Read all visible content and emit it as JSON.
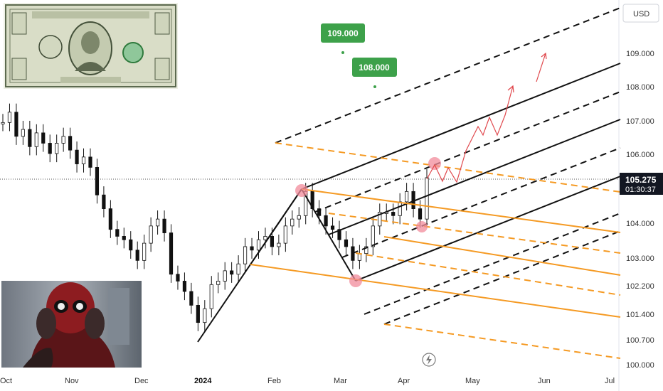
{
  "currency_label": "USD",
  "chart_data": {
    "type": "candlestick",
    "symbol_currency": "USD",
    "x_ticks": [
      "Oct",
      "Nov",
      "Dec",
      "2024",
      "Feb",
      "Mar",
      "Apr",
      "May",
      "Jun",
      "Jul"
    ],
    "y_ticks": [
      "109.000",
      "108.000",
      "107.000",
      "106.000",
      "104.000",
      "103.000",
      "102.200",
      "101.400",
      "100.700",
      "100.000"
    ],
    "last_price": "105.275",
    "countdown": "01:30:37",
    "targets": [
      {
        "label": "109.000",
        "value": 109.0
      },
      {
        "label": "108.000",
        "value": 108.0
      }
    ],
    "candles_approx": [
      {
        "x": 0.0,
        "close": 106.9
      },
      {
        "x": 0.01,
        "close": 107.2
      },
      {
        "x": 0.02,
        "close": 106.5
      },
      {
        "x": 0.03,
        "close": 106.7
      },
      {
        "x": 0.04,
        "close": 106.2
      },
      {
        "x": 0.05,
        "close": 106.6
      },
      {
        "x": 0.06,
        "close": 106.3
      },
      {
        "x": 0.07,
        "close": 106.0
      },
      {
        "x": 0.08,
        "close": 106.3
      },
      {
        "x": 0.09,
        "close": 106.5
      },
      {
        "x": 0.1,
        "close": 106.1
      },
      {
        "x": 0.11,
        "close": 105.7
      },
      {
        "x": 0.12,
        "close": 105.9
      },
      {
        "x": 0.13,
        "close": 105.6
      },
      {
        "x": 0.14,
        "close": 104.8
      },
      {
        "x": 0.15,
        "close": 104.4
      },
      {
        "x": 0.16,
        "close": 103.8
      },
      {
        "x": 0.17,
        "close": 103.6
      },
      {
        "x": 0.18,
        "close": 103.5
      },
      {
        "x": 0.19,
        "close": 103.2
      },
      {
        "x": 0.2,
        "close": 102.9
      },
      {
        "x": 0.21,
        "close": 103.4
      },
      {
        "x": 0.22,
        "close": 103.9
      },
      {
        "x": 0.23,
        "close": 104.1
      },
      {
        "x": 0.24,
        "close": 103.7
      },
      {
        "x": 0.25,
        "close": 102.5
      },
      {
        "x": 0.26,
        "close": 102.3
      },
      {
        "x": 0.27,
        "close": 102.0
      },
      {
        "x": 0.28,
        "close": 101.6
      },
      {
        "x": 0.29,
        "close": 101.1
      },
      {
        "x": 0.3,
        "close": 101.5
      },
      {
        "x": 0.31,
        "close": 102.2
      },
      {
        "x": 0.32,
        "close": 102.3
      },
      {
        "x": 0.33,
        "close": 102.6
      },
      {
        "x": 0.34,
        "close": 102.5
      },
      {
        "x": 0.35,
        "close": 102.8
      },
      {
        "x": 0.36,
        "close": 103.3
      },
      {
        "x": 0.37,
        "close": 103.2
      },
      {
        "x": 0.38,
        "close": 103.5
      },
      {
        "x": 0.39,
        "close": 103.6
      },
      {
        "x": 0.4,
        "close": 103.3
      },
      {
        "x": 0.41,
        "close": 103.4
      },
      {
        "x": 0.42,
        "close": 103.9
      },
      {
        "x": 0.43,
        "close": 104.1
      },
      {
        "x": 0.44,
        "close": 104.2
      },
      {
        "x": 0.45,
        "close": 104.9
      },
      {
        "x": 0.46,
        "close": 104.4
      },
      {
        "x": 0.47,
        "close": 104.2
      },
      {
        "x": 0.48,
        "close": 103.9
      },
      {
        "x": 0.49,
        "close": 103.8
      },
      {
        "x": 0.5,
        "close": 103.5
      },
      {
        "x": 0.51,
        "close": 103.3
      },
      {
        "x": 0.52,
        "close": 102.9
      },
      {
        "x": 0.53,
        "close": 103.1
      },
      {
        "x": 0.54,
        "close": 103.3
      },
      {
        "x": 0.55,
        "close": 103.9
      },
      {
        "x": 0.56,
        "close": 104.3
      },
      {
        "x": 0.57,
        "close": 104.3
      },
      {
        "x": 0.58,
        "close": 104.2
      },
      {
        "x": 0.59,
        "close": 104.6
      },
      {
        "x": 0.6,
        "close": 104.9
      },
      {
        "x": 0.61,
        "close": 104.4
      },
      {
        "x": 0.62,
        "close": 104.1
      },
      {
        "x": 0.63,
        "close": 105.3
      }
    ]
  }
}
